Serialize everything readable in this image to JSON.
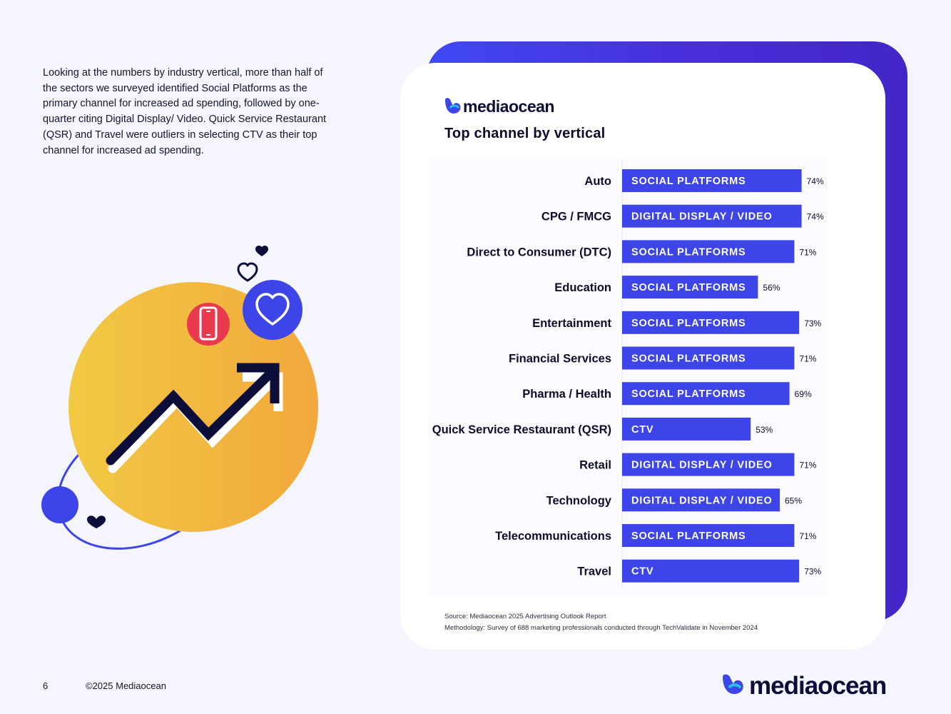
{
  "intro_text": "Looking at the numbers by industry vertical, more than half of the sectors we surveyed identified Social Platforms as the primary channel for increased ad spending, followed by one-quarter citing Digital Display/ Video.  Quick Service Restaurant (QSR) and Travel were outliers in selecting CTV as their top channel for increased ad spending.",
  "brand": {
    "name": "mediaocean"
  },
  "colors": {
    "bar": "#3d45e8",
    "bar_text": "#ffffff",
    "label_text": "#0d0d2b",
    "card_accent": "#4326c8"
  },
  "chart_data": {
    "type": "bar",
    "orientation": "horizontal",
    "title": "Top channel by vertical",
    "unit": "%",
    "categories": [
      "Auto",
      "CPG / FMCG",
      "Direct to Consumer (DTC)",
      "Education",
      "Entertainment",
      "Financial Services",
      "Pharma / Health",
      "Quick Service Restaurant (QSR)",
      "Retail",
      "Technology",
      "Telecommunications",
      "Travel"
    ],
    "channels": [
      "SOCIAL PLATFORMS",
      "DIGITAL DISPLAY / VIDEO",
      "SOCIAL PLATFORMS",
      "SOCIAL PLATFORMS",
      "SOCIAL PLATFORMS",
      "SOCIAL PLATFORMS",
      "SOCIAL PLATFORMS",
      "CTV",
      "DIGITAL DISPLAY / VIDEO",
      "DIGITAL DISPLAY / VIDEO",
      "SOCIAL PLATFORMS",
      "CTV"
    ],
    "values": [
      74,
      74,
      71,
      56,
      73,
      71,
      69,
      53,
      71,
      65,
      71,
      73
    ],
    "value_labels": [
      "74%",
      "74%",
      "71%",
      "56%",
      "73%",
      "71%",
      "69%",
      "53%",
      "71%",
      "65%",
      "71%",
      "73%"
    ],
    "xlim": [
      0,
      100
    ],
    "xlabel": "",
    "ylabel": "",
    "grid": false
  },
  "source_lines": [
    "Source: Mediaocean 2025 Advertising Outlook Report",
    "Methodology: Survey of 688 marketing professionals conducted through TechValidate in November 2024"
  ],
  "footer": {
    "page_number": "6",
    "copyright": "©2025 Mediaocean"
  }
}
